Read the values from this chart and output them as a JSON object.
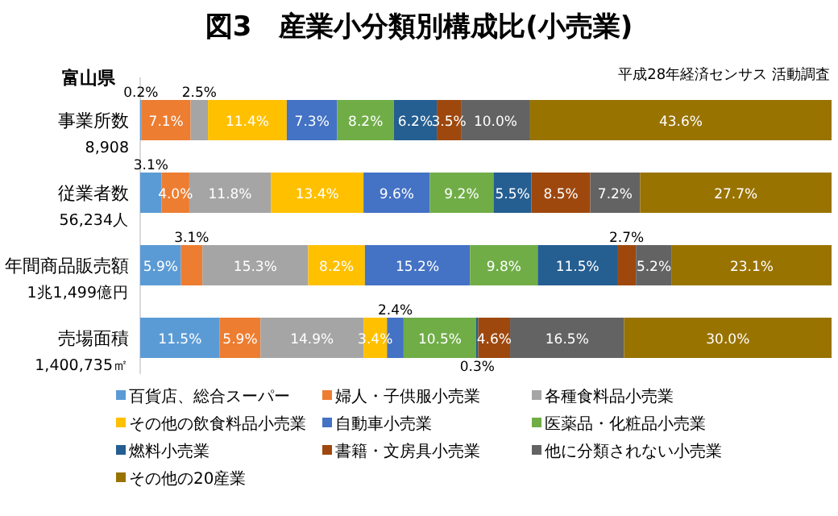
{
  "chart_data": {
    "type": "bar",
    "orientation": "horizontal",
    "stacked": true,
    "legend": "bottom",
    "title": "図3　産業小分類別構成比(小売業)",
    "annotations": [
      "富山県",
      "平成28年経済センサス 活動調査"
    ],
    "categories": [
      "事業所数\n8,908",
      "従業者数\n56,234人",
      "年間商品販売額\n1兆1,499億円",
      "売場面積\n1,400,735㎡"
    ],
    "series": [
      {
        "name": "百貨店、総合スーパー",
        "color": "#5b9bd5",
        "values": [
          0.2,
          3.1,
          5.9,
          11.5
        ],
        "value_labels": [
          "0.2%",
          "3.1%",
          "5.9%",
          "11.5%"
        ]
      },
      {
        "name": "婦人・子供服小売業",
        "color": "#ed7d31",
        "values": [
          7.1,
          4.0,
          3.1,
          5.9
        ],
        "value_labels": [
          "7.1%",
          "4.0%",
          "3.1%",
          "5.9%"
        ]
      },
      {
        "name": "各種食料品小売業",
        "color": "#a5a5a5",
        "values": [
          2.5,
          11.8,
          15.3,
          14.9
        ],
        "value_labels": [
          "2.5%",
          "11.8%",
          "15.3%",
          "14.9%"
        ]
      },
      {
        "name": "その他の飲食料品小売業",
        "color": "#ffc000",
        "values": [
          11.4,
          13.4,
          8.2,
          3.4
        ],
        "value_labels": [
          "11.4%",
          "13.4%",
          "8.2%",
          "3.4%"
        ]
      },
      {
        "name": "自動車小売業",
        "color": "#4472c4",
        "values": [
          7.3,
          9.6,
          15.2,
          2.4
        ],
        "value_labels": [
          "7.3%",
          "9.6%",
          "15.2%",
          "2.4%"
        ]
      },
      {
        "name": "医薬品・化粧品小売業",
        "color": "#70ad47",
        "values": [
          8.2,
          9.2,
          9.8,
          10.5
        ],
        "value_labels": [
          "8.2%",
          "9.2%",
          "9.8%",
          "10.5%"
        ]
      },
      {
        "name": "燃料小売業",
        "color": "#255e91",
        "values": [
          6.2,
          5.5,
          11.5,
          0.3
        ],
        "value_labels": [
          "6.2%",
          "5.5%",
          "11.5%",
          "0.3%"
        ]
      },
      {
        "name": "書籍・文房具小売業",
        "color": "#9e480e",
        "values": [
          3.5,
          8.5,
          2.7,
          4.6
        ],
        "value_labels": [
          "3.5%",
          "8.5%",
          "2.7%",
          "4.6%"
        ]
      },
      {
        "name": "他に分類されない小売業",
        "color": "#636363",
        "values": [
          10.0,
          7.2,
          5.2,
          16.5
        ],
        "value_labels": [
          "10.0%",
          "7.2%",
          "5.2%",
          "16.5%"
        ]
      },
      {
        "name": "その他の20産業",
        "color": "#997300",
        "values": [
          43.6,
          27.7,
          23.1,
          30.0
        ],
        "value_labels": [
          "43.6%",
          "27.7%",
          "23.1%",
          "30.0%"
        ]
      }
    ]
  }
}
